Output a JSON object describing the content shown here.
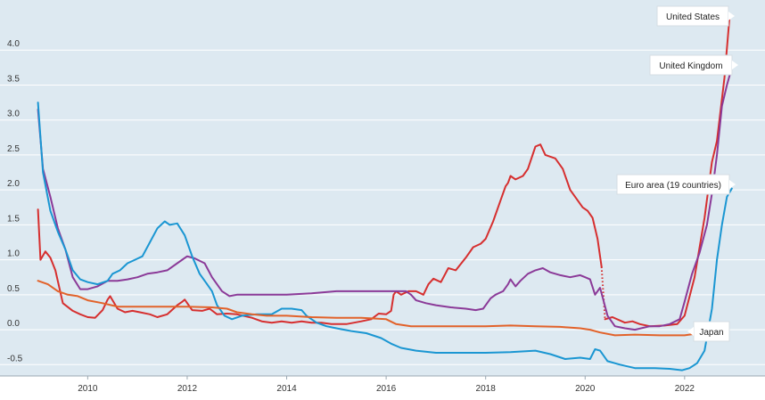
{
  "chart_data": {
    "type": "line",
    "title": "",
    "xlabel": "",
    "ylabel": "",
    "xlim": [
      2008.9,
      2023.15
    ],
    "ylim": [
      -0.7,
      4.5
    ],
    "x_ticks": [
      2010,
      2012,
      2014,
      2016,
      2018,
      2020,
      2022
    ],
    "y_ticks": [
      -0.5,
      0.0,
      0.5,
      1.0,
      1.5,
      2.0,
      2.5,
      3.0,
      3.5,
      4.0
    ],
    "y_tick_labels": [
      "-0.5",
      "0.0",
      "0.5",
      "1.0",
      "1.5",
      "2.0",
      "2.5",
      "3.0",
      "3.5",
      "4.0"
    ],
    "grid": "horizontal",
    "legend": "direct labels at line ends",
    "background": "#dde9f1",
    "series": [
      {
        "name": "United States",
        "color": "#d62f2f",
        "gap": [
          2020.33,
          2020.4
        ],
        "points": [
          [
            2009.0,
            1.72
          ],
          [
            2009.05,
            1.0
          ],
          [
            2009.15,
            1.12
          ],
          [
            2009.25,
            1.03
          ],
          [
            2009.35,
            0.85
          ],
          [
            2009.5,
            0.38
          ],
          [
            2009.7,
            0.27
          ],
          [
            2009.85,
            0.22
          ],
          [
            2010.0,
            0.18
          ],
          [
            2010.15,
            0.17
          ],
          [
            2010.3,
            0.28
          ],
          [
            2010.4,
            0.43
          ],
          [
            2010.45,
            0.48
          ],
          [
            2010.6,
            0.3
          ],
          [
            2010.75,
            0.25
          ],
          [
            2010.9,
            0.27
          ],
          [
            2011.05,
            0.25
          ],
          [
            2011.25,
            0.22
          ],
          [
            2011.4,
            0.18
          ],
          [
            2011.6,
            0.22
          ],
          [
            2011.8,
            0.35
          ],
          [
            2011.9,
            0.4
          ],
          [
            2011.95,
            0.43
          ],
          [
            2012.1,
            0.28
          ],
          [
            2012.3,
            0.27
          ],
          [
            2012.45,
            0.3
          ],
          [
            2012.6,
            0.22
          ],
          [
            2012.8,
            0.23
          ],
          [
            2013.0,
            0.22
          ],
          [
            2013.3,
            0.17
          ],
          [
            2013.5,
            0.12
          ],
          [
            2013.7,
            0.1
          ],
          [
            2013.9,
            0.12
          ],
          [
            2014.1,
            0.1
          ],
          [
            2014.3,
            0.12
          ],
          [
            2014.5,
            0.1
          ],
          [
            2014.7,
            0.1
          ],
          [
            2014.9,
            0.08
          ],
          [
            2015.2,
            0.08
          ],
          [
            2015.5,
            0.12
          ],
          [
            2015.7,
            0.15
          ],
          [
            2015.85,
            0.23
          ],
          [
            2016.0,
            0.22
          ],
          [
            2016.1,
            0.27
          ],
          [
            2016.15,
            0.5
          ],
          [
            2016.2,
            0.55
          ],
          [
            2016.3,
            0.5
          ],
          [
            2016.45,
            0.55
          ],
          [
            2016.6,
            0.55
          ],
          [
            2016.75,
            0.5
          ],
          [
            2016.85,
            0.65
          ],
          [
            2016.95,
            0.73
          ],
          [
            2017.1,
            0.68
          ],
          [
            2017.25,
            0.88
          ],
          [
            2017.4,
            0.85
          ],
          [
            2017.6,
            1.03
          ],
          [
            2017.75,
            1.18
          ],
          [
            2017.9,
            1.23
          ],
          [
            2018.0,
            1.3
          ],
          [
            2018.15,
            1.55
          ],
          [
            2018.3,
            1.85
          ],
          [
            2018.4,
            2.05
          ],
          [
            2018.45,
            2.1
          ],
          [
            2018.5,
            2.2
          ],
          [
            2018.6,
            2.15
          ],
          [
            2018.75,
            2.2
          ],
          [
            2018.85,
            2.3
          ],
          [
            2019.0,
            2.62
          ],
          [
            2019.1,
            2.65
          ],
          [
            2019.2,
            2.5
          ],
          [
            2019.4,
            2.45
          ],
          [
            2019.55,
            2.3
          ],
          [
            2019.7,
            2.0
          ],
          [
            2019.85,
            1.85
          ],
          [
            2019.95,
            1.75
          ],
          [
            2020.05,
            1.7
          ],
          [
            2020.15,
            1.6
          ],
          [
            2020.25,
            1.3
          ],
          [
            2020.33,
            0.9
          ],
          [
            2020.4,
            0.15
          ],
          [
            2020.55,
            0.18
          ],
          [
            2020.8,
            0.1
          ],
          [
            2020.95,
            0.12
          ],
          [
            2021.1,
            0.08
          ],
          [
            2021.3,
            0.05
          ],
          [
            2021.6,
            0.06
          ],
          [
            2021.85,
            0.08
          ],
          [
            2022.0,
            0.2
          ],
          [
            2022.2,
            0.75
          ],
          [
            2022.4,
            1.6
          ],
          [
            2022.55,
            2.4
          ],
          [
            2022.65,
            2.7
          ],
          [
            2022.8,
            3.6
          ],
          [
            2022.9,
            4.45
          ]
        ]
      },
      {
        "name": "United Kingdom",
        "color": "#8b3a98",
        "points": [
          [
            2009.0,
            3.15
          ],
          [
            2009.1,
            2.3
          ],
          [
            2009.25,
            1.9
          ],
          [
            2009.4,
            1.45
          ],
          [
            2009.55,
            1.15
          ],
          [
            2009.7,
            0.75
          ],
          [
            2009.85,
            0.58
          ],
          [
            2010.0,
            0.58
          ],
          [
            2010.2,
            0.62
          ],
          [
            2010.4,
            0.7
          ],
          [
            2010.6,
            0.7
          ],
          [
            2010.8,
            0.72
          ],
          [
            2011.0,
            0.75
          ],
          [
            2011.2,
            0.8
          ],
          [
            2011.4,
            0.82
          ],
          [
            2011.6,
            0.85
          ],
          [
            2011.8,
            0.95
          ],
          [
            2012.0,
            1.05
          ],
          [
            2012.15,
            1.02
          ],
          [
            2012.35,
            0.95
          ],
          [
            2012.5,
            0.75
          ],
          [
            2012.7,
            0.55
          ],
          [
            2012.85,
            0.48
          ],
          [
            2013.0,
            0.5
          ],
          [
            2013.5,
            0.5
          ],
          [
            2014.0,
            0.5
          ],
          [
            2014.5,
            0.52
          ],
          [
            2015.0,
            0.55
          ],
          [
            2015.5,
            0.55
          ],
          [
            2016.0,
            0.55
          ],
          [
            2016.4,
            0.55
          ],
          [
            2016.5,
            0.5
          ],
          [
            2016.6,
            0.42
          ],
          [
            2016.8,
            0.38
          ],
          [
            2017.0,
            0.35
          ],
          [
            2017.3,
            0.32
          ],
          [
            2017.6,
            0.3
          ],
          [
            2017.8,
            0.28
          ],
          [
            2017.95,
            0.3
          ],
          [
            2018.1,
            0.45
          ],
          [
            2018.2,
            0.5
          ],
          [
            2018.35,
            0.55
          ],
          [
            2018.45,
            0.65
          ],
          [
            2018.5,
            0.72
          ],
          [
            2018.6,
            0.62
          ],
          [
            2018.7,
            0.7
          ],
          [
            2018.85,
            0.8
          ],
          [
            2019.0,
            0.85
          ],
          [
            2019.15,
            0.88
          ],
          [
            2019.3,
            0.82
          ],
          [
            2019.5,
            0.78
          ],
          [
            2019.7,
            0.75
          ],
          [
            2019.9,
            0.78
          ],
          [
            2020.0,
            0.75
          ],
          [
            2020.1,
            0.72
          ],
          [
            2020.2,
            0.5
          ],
          [
            2020.3,
            0.6
          ],
          [
            2020.45,
            0.2
          ],
          [
            2020.6,
            0.05
          ],
          [
            2020.8,
            0.02
          ],
          [
            2021.0,
            0.0
          ],
          [
            2021.3,
            0.05
          ],
          [
            2021.5,
            0.05
          ],
          [
            2021.7,
            0.08
          ],
          [
            2021.9,
            0.15
          ],
          [
            2022.0,
            0.4
          ],
          [
            2022.15,
            0.8
          ],
          [
            2022.3,
            1.1
          ],
          [
            2022.45,
            1.5
          ],
          [
            2022.55,
            1.95
          ],
          [
            2022.65,
            2.5
          ],
          [
            2022.75,
            3.2
          ],
          [
            2022.85,
            3.5
          ],
          [
            2022.95,
            3.75
          ]
        ]
      },
      {
        "name": "Euro area (19 countries)",
        "color": "#1a96d2",
        "points": [
          [
            2009.0,
            3.25
          ],
          [
            2009.1,
            2.25
          ],
          [
            2009.25,
            1.7
          ],
          [
            2009.4,
            1.4
          ],
          [
            2009.55,
            1.15
          ],
          [
            2009.7,
            0.85
          ],
          [
            2009.85,
            0.72
          ],
          [
            2010.0,
            0.68
          ],
          [
            2010.2,
            0.65
          ],
          [
            2010.4,
            0.7
          ],
          [
            2010.5,
            0.8
          ],
          [
            2010.65,
            0.85
          ],
          [
            2010.8,
            0.95
          ],
          [
            2010.95,
            1.0
          ],
          [
            2011.1,
            1.05
          ],
          [
            2011.25,
            1.25
          ],
          [
            2011.4,
            1.45
          ],
          [
            2011.55,
            1.55
          ],
          [
            2011.65,
            1.5
          ],
          [
            2011.8,
            1.52
          ],
          [
            2011.95,
            1.35
          ],
          [
            2012.1,
            1.05
          ],
          [
            2012.25,
            0.8
          ],
          [
            2012.4,
            0.65
          ],
          [
            2012.5,
            0.55
          ],
          [
            2012.6,
            0.35
          ],
          [
            2012.75,
            0.2
          ],
          [
            2012.9,
            0.15
          ],
          [
            2013.1,
            0.2
          ],
          [
            2013.4,
            0.22
          ],
          [
            2013.7,
            0.22
          ],
          [
            2013.9,
            0.3
          ],
          [
            2014.1,
            0.3
          ],
          [
            2014.3,
            0.28
          ],
          [
            2014.4,
            0.2
          ],
          [
            2014.6,
            0.1
          ],
          [
            2014.8,
            0.05
          ],
          [
            2015.0,
            0.02
          ],
          [
            2015.3,
            -0.02
          ],
          [
            2015.6,
            -0.05
          ],
          [
            2015.9,
            -0.12
          ],
          [
            2016.1,
            -0.2
          ],
          [
            2016.3,
            -0.26
          ],
          [
            2016.6,
            -0.3
          ],
          [
            2017.0,
            -0.33
          ],
          [
            2017.5,
            -0.33
          ],
          [
            2018.0,
            -0.33
          ],
          [
            2018.5,
            -0.32
          ],
          [
            2019.0,
            -0.3
          ],
          [
            2019.3,
            -0.35
          ],
          [
            2019.6,
            -0.42
          ],
          [
            2019.9,
            -0.4
          ],
          [
            2020.1,
            -0.42
          ],
          [
            2020.2,
            -0.28
          ],
          [
            2020.3,
            -0.3
          ],
          [
            2020.45,
            -0.45
          ],
          [
            2020.7,
            -0.5
          ],
          [
            2021.0,
            -0.55
          ],
          [
            2021.4,
            -0.55
          ],
          [
            2021.7,
            -0.56
          ],
          [
            2021.95,
            -0.58
          ],
          [
            2022.1,
            -0.55
          ],
          [
            2022.25,
            -0.48
          ],
          [
            2022.4,
            -0.3
          ],
          [
            2022.55,
            0.3
          ],
          [
            2022.65,
            1.0
          ],
          [
            2022.75,
            1.5
          ],
          [
            2022.85,
            1.9
          ],
          [
            2022.95,
            2.02
          ]
        ]
      },
      {
        "name": "Japan",
        "color": "#e2622a",
        "points": [
          [
            2009.0,
            0.7
          ],
          [
            2009.2,
            0.65
          ],
          [
            2009.4,
            0.55
          ],
          [
            2009.6,
            0.5
          ],
          [
            2009.8,
            0.48
          ],
          [
            2010.0,
            0.42
          ],
          [
            2010.3,
            0.38
          ],
          [
            2010.6,
            0.33
          ],
          [
            2011.0,
            0.33
          ],
          [
            2011.5,
            0.33
          ],
          [
            2012.0,
            0.33
          ],
          [
            2012.5,
            0.32
          ],
          [
            2012.8,
            0.3
          ],
          [
            2013.0,
            0.25
          ],
          [
            2013.3,
            0.22
          ],
          [
            2013.6,
            0.2
          ],
          [
            2014.0,
            0.2
          ],
          [
            2014.5,
            0.18
          ],
          [
            2015.0,
            0.17
          ],
          [
            2015.5,
            0.17
          ],
          [
            2016.0,
            0.15
          ],
          [
            2016.2,
            0.08
          ],
          [
            2016.5,
            0.05
          ],
          [
            2017.0,
            0.05
          ],
          [
            2017.5,
            0.05
          ],
          [
            2018.0,
            0.05
          ],
          [
            2018.5,
            0.06
          ],
          [
            2019.0,
            0.05
          ],
          [
            2019.5,
            0.04
          ],
          [
            2019.9,
            0.02
          ],
          [
            2020.1,
            0.0
          ],
          [
            2020.3,
            -0.04
          ],
          [
            2020.6,
            -0.08
          ],
          [
            2021.0,
            -0.07
          ],
          [
            2021.5,
            -0.08
          ],
          [
            2022.0,
            -0.08
          ],
          [
            2022.3,
            -0.05
          ],
          [
            2022.6,
            -0.04
          ],
          [
            2022.85,
            -0.03
          ]
        ]
      }
    ]
  },
  "labels": [
    {
      "name": "United States"
    },
    {
      "name": "United Kingdom"
    },
    {
      "name": "Euro area (19 countries)"
    },
    {
      "name": "Japan"
    }
  ]
}
